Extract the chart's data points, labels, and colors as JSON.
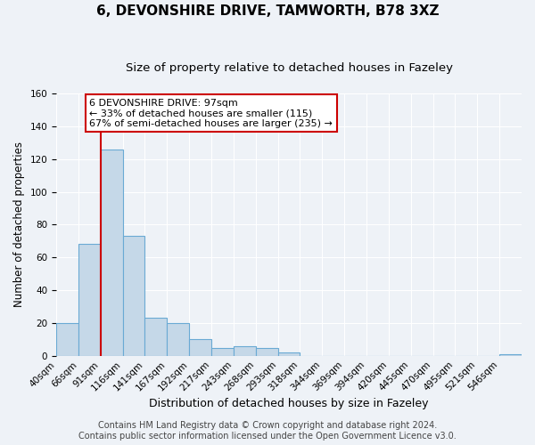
{
  "title": "6, DEVONSHIRE DRIVE, TAMWORTH, B78 3XZ",
  "subtitle": "Size of property relative to detached houses in Fazeley",
  "xlabel": "Distribution of detached houses by size in Fazeley",
  "ylabel": "Number of detached properties",
  "bin_labels": [
    "40sqm",
    "66sqm",
    "91sqm",
    "116sqm",
    "141sqm",
    "167sqm",
    "192sqm",
    "217sqm",
    "243sqm",
    "268sqm",
    "293sqm",
    "318sqm",
    "344sqm",
    "369sqm",
    "394sqm",
    "420sqm",
    "445sqm",
    "470sqm",
    "495sqm",
    "521sqm",
    "546sqm"
  ],
  "bar_values": [
    20,
    68,
    126,
    73,
    23,
    20,
    10,
    5,
    6,
    5,
    2,
    0,
    0,
    0,
    0,
    0,
    0,
    0,
    0,
    0,
    1
  ],
  "bar_color": "#c5d8e8",
  "bar_edge_color": "#6aaad4",
  "vline_index": 2,
  "vline_color": "#CC0000",
  "ylim": [
    0,
    160
  ],
  "annotation_text": "6 DEVONSHIRE DRIVE: 97sqm\n← 33% of detached houses are smaller (115)\n67% of semi-detached houses are larger (235) →",
  "annotation_box_facecolor": "#FFFFFF",
  "annotation_box_edgecolor": "#CC0000",
  "footer_line1": "Contains HM Land Registry data © Crown copyright and database right 2024.",
  "footer_line2": "Contains public sector information licensed under the Open Government Licence v3.0.",
  "bg_color": "#EEF2F7",
  "grid_color": "#FFFFFF",
  "title_fontsize": 11,
  "subtitle_fontsize": 9.5,
  "xlabel_fontsize": 9,
  "ylabel_fontsize": 8.5,
  "tick_fontsize": 7.5,
  "annotation_fontsize": 8,
  "footer_fontsize": 7
}
